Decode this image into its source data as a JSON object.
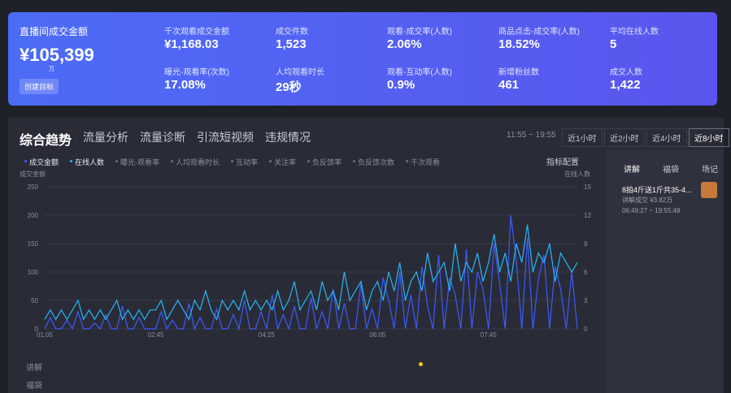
{
  "header": {
    "title": "直播间成交金额",
    "amount": "¥105,399",
    "unit": "万",
    "button": "创建目标",
    "metrics": [
      {
        "label": "千次观看成交金额",
        "value": "¥1,168.03"
      },
      {
        "label": "成交件数",
        "value": "1,523"
      },
      {
        "label": "观看-成交率(人数)",
        "value": "2.06%"
      },
      {
        "label": "商品点击-成交率(人数)",
        "value": "18.52%"
      },
      {
        "label": "平均在线人数",
        "value": "5"
      },
      {
        "label": "曝光-观看率(次数)",
        "value": "17.08%"
      },
      {
        "label": "人均观看时长",
        "value": "29秒"
      },
      {
        "label": "观看-互动率(人数)",
        "value": "0.9%"
      },
      {
        "label": "新增粉丝数",
        "value": "461"
      },
      {
        "label": "成交人数",
        "value": "1,422"
      }
    ]
  },
  "tabs": [
    "综合趋势",
    "流量分析",
    "流量诊断",
    "引流短视频",
    "违规情况"
  ],
  "time_range": "11:55 ~ 19:55",
  "range_buttons": [
    "近1小时",
    "近2小时",
    "近4小时",
    "近8小时"
  ],
  "metric_chips": [
    "曝光-观看率",
    "人均观看时长",
    "互动率",
    "关注率",
    "负反馈率",
    "负反馈次数",
    "千次观看"
  ],
  "config_button": "指标配置",
  "chart_data": {
    "type": "line",
    "y_label": "成交金额",
    "y2_label": "在线人数",
    "categories": [
      "01:05",
      null,
      null,
      null,
      null,
      null,
      null,
      null,
      null,
      null,
      null,
      null,
      null,
      null,
      null,
      null,
      null,
      null,
      null,
      null,
      "02:45",
      null,
      null,
      null,
      null,
      null,
      null,
      null,
      null,
      null,
      null,
      null,
      null,
      null,
      null,
      null,
      null,
      null,
      null,
      null,
      "04:25",
      null,
      null,
      null,
      null,
      null,
      null,
      null,
      null,
      null,
      null,
      null,
      null,
      null,
      null,
      null,
      null,
      null,
      null,
      null,
      "06:05",
      null,
      null,
      null,
      null,
      null,
      null,
      null,
      null,
      null,
      null,
      null,
      null,
      null,
      null,
      null,
      null,
      null,
      null,
      null,
      "07:45",
      null,
      null,
      null,
      null,
      null,
      null,
      null,
      null,
      null,
      null,
      null,
      null,
      null,
      null,
      null,
      null
    ],
    "ylim": [
      0,
      250
    ],
    "yticks": [
      0,
      50,
      100,
      150,
      200,
      250
    ],
    "y2lim": [
      0,
      15
    ],
    "y2ticks": [
      0,
      3,
      6,
      9,
      12,
      15
    ],
    "series": [
      {
        "name": "成交金额",
        "color": "#3d5afe",
        "values": [
          0,
          20,
          0,
          0,
          15,
          0,
          30,
          0,
          0,
          10,
          0,
          25,
          0,
          0,
          40,
          0,
          0,
          20,
          0,
          0,
          0,
          30,
          0,
          15,
          0,
          0,
          45,
          0,
          20,
          0,
          0,
          35,
          0,
          0,
          25,
          0,
          50,
          0,
          0,
          30,
          0,
          60,
          0,
          25,
          0,
          40,
          0,
          0,
          55,
          0,
          30,
          0,
          70,
          0,
          45,
          0,
          0,
          80,
          0,
          35,
          0,
          90,
          50,
          0,
          100,
          0,
          60,
          0,
          110,
          40,
          0,
          130,
          0,
          90,
          60,
          0,
          140,
          0,
          100,
          70,
          0,
          150,
          80,
          0,
          200,
          120,
          0,
          160,
          0,
          90,
          130,
          0,
          110,
          70,
          0,
          100,
          0
        ]
      },
      {
        "name": "在线人数",
        "color": "#29b6f6",
        "axis": "y2",
        "values": [
          1,
          2,
          1,
          2,
          1,
          2,
          3,
          1,
          2,
          1,
          2,
          1,
          2,
          3,
          1,
          2,
          1,
          2,
          1,
          2,
          2,
          3,
          1,
          2,
          3,
          2,
          1,
          3,
          2,
          4,
          2,
          1,
          3,
          2,
          3,
          2,
          4,
          2,
          3,
          2,
          3,
          2,
          4,
          2,
          3,
          5,
          2,
          3,
          4,
          2,
          5,
          3,
          4,
          2,
          6,
          3,
          4,
          5,
          2,
          4,
          5,
          3,
          6,
          4,
          7,
          3,
          5,
          6,
          4,
          8,
          5,
          6,
          7,
          4,
          9,
          5,
          7,
          6,
          8,
          5,
          7,
          10,
          6,
          8,
          5,
          9,
          7,
          11,
          6,
          8,
          7,
          9,
          5,
          8,
          7,
          6,
          7
        ]
      }
    ]
  },
  "side_panel": {
    "tabs": [
      "讲解",
      "福袋",
      "场记"
    ],
    "item_title": "8拍4斤送1斤共35-4...",
    "item_sales": "讲解成交 ¥3.82万",
    "item_time": "06:49:27 ~ 19:55:48"
  },
  "bottom_rows": [
    "讲解",
    "福袋"
  ]
}
